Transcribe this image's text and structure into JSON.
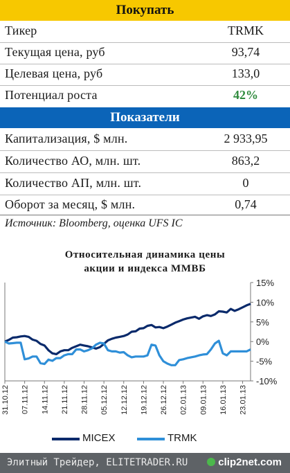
{
  "buy_header": "Покупать",
  "table1": [
    {
      "label": "Тикер",
      "value": "TRMK"
    },
    {
      "label": "Текущая цена, руб",
      "value": "93,74"
    },
    {
      "label": "Целевая цена, руб",
      "value": "133,0"
    },
    {
      "label": "Потенциал роста",
      "value": "42%"
    }
  ],
  "indicators_header": "Показатели",
  "table2": [
    {
      "label": "Капитализация, $ млн.",
      "value": "2 933,95"
    },
    {
      "label": "Количество АО, млн. шт.",
      "value": "863,2"
    },
    {
      "label": "Количество АП, млн. шт.",
      "value": "0"
    },
    {
      "label": "Оборот за месяц, $ млн.",
      "value": "0,74"
    }
  ],
  "source": "Источник: Bloomberg, оценка UFS IC",
  "footer": {
    "text": "Элитный Трейдер, ELITETRADER.RU",
    "brand": "clip2net.com"
  },
  "colors": {
    "buy_band": "#f7c800",
    "indicators_band": "#0b64b8",
    "micex": "#0a2a6b",
    "trmk": "#2f8fd8",
    "growth": "#2e8a3c"
  },
  "chart_data": {
    "type": "line",
    "title_line1": "Относительная динамика цены",
    "title_line2": "акции и индекса ММВБ",
    "ylim": [
      -0.1,
      0.15
    ],
    "y_ticks": [
      -0.1,
      -0.05,
      0,
      0.05,
      0.1,
      0.15
    ],
    "y_tick_labels": [
      "-10%",
      "-5%",
      "0%",
      "5%",
      "10%",
      "15%"
    ],
    "x_tick_labels": [
      "31.10.12",
      "07.11.12",
      "14.11.12",
      "21.11.12",
      "28.11.12",
      "05.12.12",
      "12.12.12",
      "19.12.12",
      "26.12.12",
      "02.01.13",
      "09.01.13",
      "16.01.13",
      "23.01.13"
    ],
    "n_points": 63,
    "grid": false,
    "legend_position": "bottom",
    "series": [
      {
        "name": "MICEX",
        "values": [
          0,
          0.004,
          0.01,
          0.011,
          0.013,
          0.014,
          0.012,
          0.005,
          0.002,
          -0.006,
          -0.01,
          -0.022,
          -0.03,
          -0.032,
          -0.025,
          -0.022,
          -0.022,
          -0.016,
          -0.012,
          -0.008,
          -0.01,
          -0.012,
          -0.015,
          -0.018,
          -0.014,
          -0.006,
          0.003,
          0.007,
          0.01,
          0.012,
          0.014,
          0.018,
          0.025,
          0.026,
          0.033,
          0.034,
          0.04,
          0.042,
          0.036,
          0.037,
          0.034,
          0.038,
          0.043,
          0.048,
          0.052,
          0.056,
          0.059,
          0.061,
          0.063,
          0.058,
          0.064,
          0.067,
          0.065,
          0.069,
          0.077,
          0.076,
          0.074,
          0.083,
          0.078,
          0.082,
          0.087,
          0.092,
          0.096
        ]
      },
      {
        "name": "TRMK",
        "values": [
          0,
          -0.005,
          -0.004,
          -0.003,
          -0.003,
          -0.045,
          -0.043,
          -0.038,
          -0.038,
          -0.055,
          -0.057,
          -0.046,
          -0.049,
          -0.042,
          -0.042,
          -0.035,
          -0.032,
          -0.032,
          -0.02,
          -0.02,
          -0.025,
          -0.022,
          -0.017,
          -0.008,
          -0.003,
          -0.005,
          -0.022,
          -0.025,
          -0.025,
          -0.028,
          -0.027,
          -0.035,
          -0.04,
          -0.038,
          -0.038,
          -0.038,
          -0.035,
          -0.008,
          -0.01,
          -0.035,
          -0.05,
          -0.056,
          -0.06,
          -0.06,
          -0.047,
          -0.045,
          -0.042,
          -0.04,
          -0.038,
          -0.035,
          -0.033,
          -0.032,
          -0.02,
          -0.005,
          0.002,
          -0.03,
          -0.035,
          -0.025,
          -0.025,
          -0.025,
          -0.025,
          -0.025,
          -0.02
        ]
      }
    ]
  }
}
